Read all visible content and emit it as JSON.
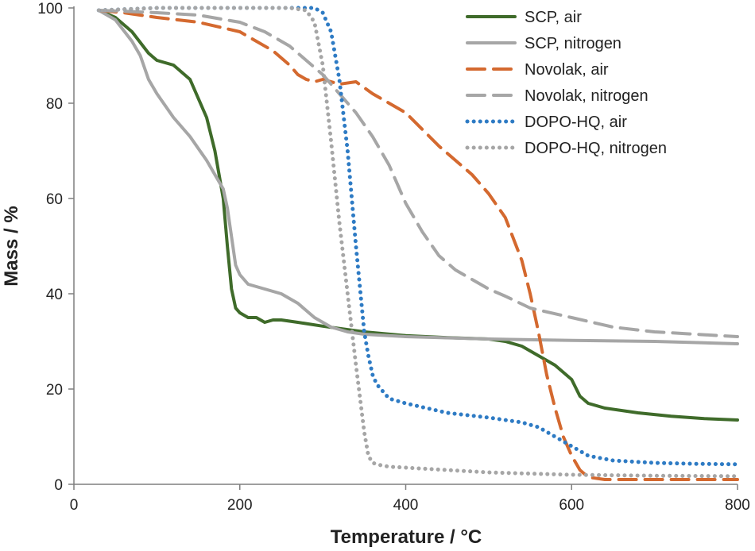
{
  "chart_data": {
    "type": "line",
    "title": "",
    "xlabel": "Temperature / °C",
    "ylabel": "Mass / %",
    "xlim": [
      0,
      800
    ],
    "ylim": [
      0,
      100
    ],
    "xticks": [
      0,
      200,
      400,
      600,
      800
    ],
    "yticks": [
      0,
      20,
      40,
      60,
      80,
      100
    ],
    "grid": false,
    "legend_position": "top-right",
    "series": [
      {
        "name": "SCP, air",
        "color": "#3f6b2a",
        "style": "solid",
        "x": [
          30,
          50,
          70,
          90,
          100,
          120,
          140,
          160,
          170,
          180,
          185,
          190,
          195,
          200,
          210,
          220,
          230,
          240,
          250,
          270,
          300,
          350,
          400,
          450,
          500,
          520,
          540,
          560,
          580,
          600,
          610,
          620,
          640,
          680,
          720,
          760,
          800
        ],
        "y": [
          99.5,
          98,
          95,
          90.5,
          89,
          88,
          85,
          77,
          70,
          60,
          50,
          41,
          37,
          36,
          35,
          35,
          34,
          34.5,
          34.5,
          34,
          33.2,
          32,
          31.2,
          30.8,
          30.5,
          30,
          29,
          27,
          25,
          22,
          18.5,
          17,
          16,
          15,
          14.3,
          13.8,
          13.5
        ]
      },
      {
        "name": "SCP, nitrogen",
        "color": "#a6a6a6",
        "style": "solid",
        "x": [
          30,
          50,
          70,
          80,
          90,
          100,
          120,
          140,
          160,
          170,
          180,
          185,
          190,
          195,
          200,
          210,
          230,
          250,
          270,
          290,
          310,
          330,
          350,
          400,
          500,
          600,
          700,
          800
        ],
        "y": [
          99.5,
          97.5,
          93,
          90,
          85,
          82,
          77,
          73,
          68,
          65,
          62,
          58,
          52,
          46,
          44,
          42,
          41,
          40,
          38,
          35,
          33,
          32,
          31.5,
          31,
          30.5,
          30.2,
          30,
          29.5
        ]
      },
      {
        "name": "Novolak, air",
        "color": "#d4692f",
        "style": "dashed",
        "x": [
          30,
          60,
          100,
          150,
          200,
          240,
          260,
          270,
          280,
          290,
          300,
          320,
          340,
          360,
          400,
          440,
          480,
          500,
          520,
          540,
          550,
          560,
          570,
          580,
          590,
          600,
          610,
          620,
          640,
          680,
          720,
          760,
          800
        ],
        "y": [
          99.5,
          99,
          98,
          97,
          95,
          91,
          88,
          86,
          85,
          84.5,
          85,
          84,
          84.5,
          82,
          78,
          71,
          65,
          61,
          56,
          47,
          40,
          32,
          23,
          16,
          10,
          6,
          3,
          1.5,
          1,
          1,
          1,
          1,
          1
        ]
      },
      {
        "name": "Novolak, nitrogen",
        "color": "#a6a6a6",
        "style": "dashed",
        "x": [
          30,
          60,
          100,
          150,
          200,
          230,
          260,
          280,
          300,
          320,
          340,
          360,
          380,
          400,
          420,
          440,
          460,
          480,
          500,
          520,
          550,
          600,
          650,
          700,
          750,
          800
        ],
        "y": [
          99.5,
          99.3,
          99,
          98.5,
          97,
          95,
          92,
          89,
          86,
          82,
          78,
          73,
          67,
          59,
          53,
          48,
          45,
          43,
          41,
          39.5,
          37,
          35,
          33,
          32,
          31.5,
          31
        ]
      },
      {
        "name": "DOPO-HQ, air",
        "color": "#2e7bc4",
        "style": "dotted",
        "x": [
          30,
          100,
          200,
          250,
          290,
          300,
          310,
          320,
          330,
          340,
          350,
          355,
          360,
          365,
          370,
          380,
          400,
          450,
          500,
          540,
          560,
          580,
          600,
          620,
          650,
          700,
          750,
          800
        ],
        "y": [
          99.5,
          100,
          100,
          100,
          100,
          99,
          95,
          85,
          70,
          50,
          32,
          27,
          23,
          21,
          20,
          18,
          17,
          15,
          14,
          13,
          12,
          10,
          8,
          6,
          5,
          4.5,
          4.3,
          4.2
        ]
      },
      {
        "name": "DOPO-HQ, nitrogen",
        "color": "#a6a6a6",
        "style": "dotted",
        "x": [
          30,
          100,
          200,
          260,
          280,
          290,
          300,
          310,
          320,
          330,
          340,
          345,
          350,
          355,
          360,
          370,
          380,
          400,
          450,
          500,
          600,
          700,
          800
        ],
        "y": [
          99.5,
          100,
          100,
          100,
          99.5,
          97,
          88,
          72,
          55,
          40,
          25,
          18,
          11,
          6,
          4.5,
          4,
          3.7,
          3.5,
          3,
          2.5,
          2,
          1.8,
          1.7
        ]
      }
    ]
  }
}
